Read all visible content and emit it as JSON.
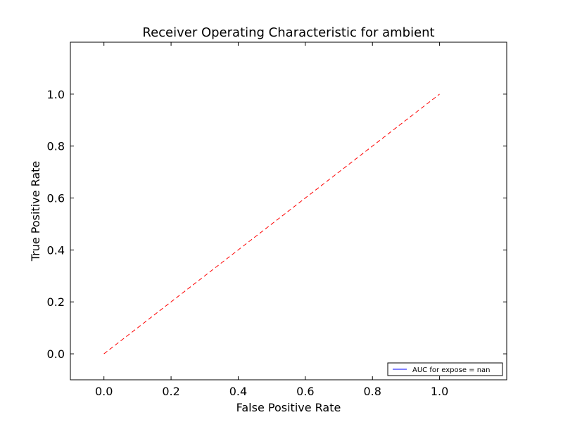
{
  "chart_data": {
    "type": "line",
    "title": "Receiver Operating Characteristic for ambient",
    "xlabel": "False Positive Rate",
    "ylabel": "True Positive Rate",
    "xlim": [
      -0.1,
      1.2
    ],
    "ylim": [
      -0.1,
      1.2
    ],
    "x_ticks": [
      0.0,
      0.2,
      0.4,
      0.6,
      0.8,
      1.0
    ],
    "y_ticks": [
      0.0,
      0.2,
      0.4,
      0.6,
      0.8,
      1.0
    ],
    "x_tick_labels": [
      "0.0",
      "0.2",
      "0.4",
      "0.6",
      "0.8",
      "1.0"
    ],
    "y_tick_labels": [
      "0.0",
      "0.2",
      "0.4",
      "0.6",
      "0.8",
      "1.0"
    ],
    "grid": false,
    "legend_position": "lower-right",
    "series": [
      {
        "name": "AUC for expose = nan",
        "color": "#0000ff",
        "style": "solid",
        "x": [],
        "y": []
      },
      {
        "color": "#ff0000",
        "style": "dashed",
        "x": [
          0.0,
          1.0
        ],
        "y": [
          0.0,
          1.0
        ]
      }
    ]
  }
}
